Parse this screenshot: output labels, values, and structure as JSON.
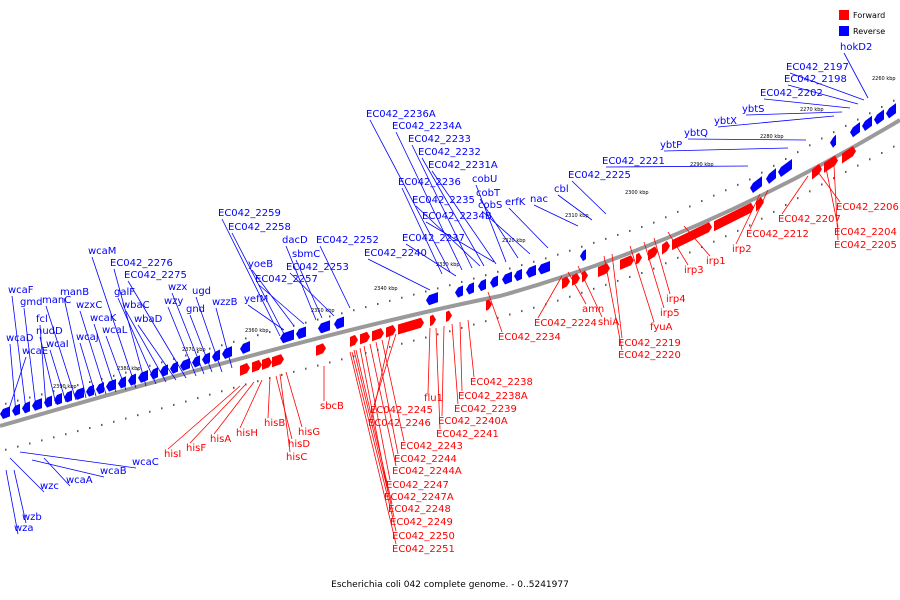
{
  "title": "Escherichia coli 042 complete genome. - 0..5241977",
  "legend": [
    {
      "label": "Forward",
      "color": "#ff0000"
    },
    {
      "label": "Reverse",
      "color": "#0000ff"
    }
  ],
  "colors": {
    "forward": "#ff0000",
    "reverse": "#0000ff",
    "backbone": "#999999"
  },
  "kbp_ticks": [
    "2260 kbp",
    "2270 kbp",
    "2280 kbp",
    "2290 kbp",
    "2300 kbp",
    "2310 kbp",
    "2320 kbp",
    "2330 kbp",
    "2340 kbp",
    "2350 kbp",
    "2360 kbp",
    "2370 kbp",
    "2380 kbp",
    "2390 kbp"
  ],
  "reverse_labels": [
    "hokD2",
    "EC042_2197",
    "EC042_2198",
    "EC042_2202",
    "ybtS",
    "ybtX",
    "ybtQ",
    "ybtP",
    "EC042_2221",
    "EC042_2225",
    "cbl",
    "nac",
    "erfK",
    "cobS",
    "cobT",
    "cobU",
    "EC042_2231A",
    "EC042_2232",
    "EC042_2233",
    "EC042_2234A",
    "EC042_2236A",
    "EC042_2236",
    "EC042_2235",
    "EC042_2234B",
    "EC042_2237",
    "EC042_2240",
    "EC042_2252",
    "EC042_2253",
    "sbmC",
    "dacD",
    "EC042_2257",
    "yoeB",
    "yefM",
    "EC042_2258",
    "EC042_2259",
    "wzzB",
    "ugd",
    "gnd",
    "wzx",
    "wzy",
    "EC042_2275",
    "wbaD",
    "wbaC",
    "galF",
    "EC042_2276",
    "wcaM",
    "wcaL",
    "wcaK",
    "wzxC",
    "wcaJ",
    "manB",
    "manC",
    "wcaI",
    "nudD",
    "fcl",
    "gmd",
    "wcaF",
    "wcaD",
    "wcaE",
    "wcaC",
    "wcaB",
    "wcaA",
    "wzc",
    "wzb",
    "wza"
  ],
  "forward_labels": [
    "EC042_2206",
    "EC042_2204",
    "EC042_2205",
    "EC042_2207",
    "EC042_2212",
    "irp2",
    "irp1",
    "irp3",
    "irp4",
    "irp5",
    "fyuA",
    "EC042_2219",
    "EC042_2220",
    "shiA",
    "amn",
    "EC042_2224",
    "EC042_2234",
    "EC042_2238",
    "EC042_2238A",
    "EC042_2239",
    "EC042_2240A",
    "EC042_2241",
    "flu1",
    "EC042_2245",
    "EC042_2246",
    "EC042_2243",
    "EC042_2244",
    "EC042_2244A",
    "EC042_2247",
    "EC042_2247A",
    "EC042_2248",
    "EC042_2249",
    "EC042_2250",
    "EC042_2251",
    "sbcB",
    "hisG",
    "hisC",
    "hisD",
    "hisB",
    "hisH",
    "hisA",
    "hisF",
    "hisI"
  ]
}
